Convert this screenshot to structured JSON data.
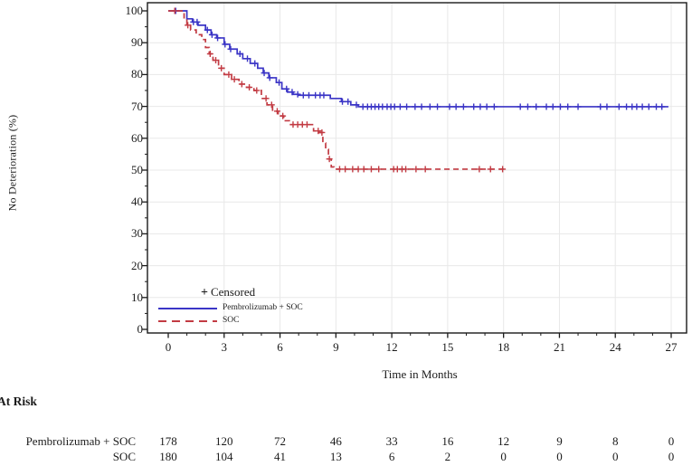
{
  "legend": {
    "censored_marker": "+",
    "censored_label": "Censored"
  },
  "at_risk": {
    "title": "At Risk",
    "rows": [
      {
        "label": "Pembrolizumab + SOC",
        "values": [
          178,
          120,
          72,
          46,
          33,
          16,
          12,
          9,
          8,
          0
        ]
      },
      {
        "label": "SOC",
        "values": [
          180,
          104,
          41,
          13,
          6,
          2,
          0,
          0,
          0,
          0
        ]
      }
    ]
  },
  "chart_data": {
    "type": "line",
    "subtype": "kaplan-meier-step",
    "title": "",
    "xlabel": "Time in Months",
    "ylabel": "No Deterioration (%)",
    "xlim": [
      0,
      27
    ],
    "ylim": [
      0,
      100
    ],
    "x_ticks": [
      0,
      3,
      6,
      9,
      12,
      15,
      18,
      21,
      24,
      27
    ],
    "x_minor_tick_step": 1,
    "y_ticks": [
      0,
      10,
      20,
      30,
      40,
      50,
      60,
      70,
      80,
      90,
      100
    ],
    "y_minor_tick_step": 5,
    "grid": true,
    "grid_color": "#e8e8e8",
    "axis_color": "#1a1a1a",
    "legend_position": "inside lower-left",
    "series": [
      {
        "name": "Pembrolizumab + SOC",
        "color": "#3b35c6",
        "dash": "solid",
        "points": [
          [
            0,
            100
          ],
          [
            0.85,
            100
          ],
          [
            1.0,
            97.5
          ],
          [
            1.3,
            96.5
          ],
          [
            1.6,
            95.5
          ],
          [
            2.0,
            94
          ],
          [
            2.3,
            92.5
          ],
          [
            2.6,
            91.5
          ],
          [
            3.0,
            89.5
          ],
          [
            3.3,
            88
          ],
          [
            3.7,
            86.5
          ],
          [
            4.0,
            85
          ],
          [
            4.4,
            83.5
          ],
          [
            4.8,
            82
          ],
          [
            5.1,
            80.5
          ],
          [
            5.4,
            79
          ],
          [
            5.8,
            77.5
          ],
          [
            6.1,
            75.5
          ],
          [
            6.4,
            74.5
          ],
          [
            6.7,
            73.8
          ],
          [
            7.0,
            73.5
          ],
          [
            8.5,
            73.5
          ],
          [
            8.7,
            72.5
          ],
          [
            9.3,
            71.5
          ],
          [
            9.8,
            70.5
          ],
          [
            10.2,
            69.9
          ],
          [
            26.85,
            69.9
          ]
        ],
        "censor_x": [
          0.4,
          1.35,
          1.55,
          2.1,
          2.35,
          2.65,
          3.05,
          3.35,
          3.85,
          4.25,
          4.65,
          5.15,
          5.45,
          5.95,
          6.35,
          6.65,
          6.95,
          7.25,
          7.55,
          7.9,
          8.15,
          8.35,
          9.35,
          9.65,
          10.1,
          10.45,
          10.7,
          10.9,
          11.1,
          11.3,
          11.5,
          11.75,
          11.95,
          12.15,
          12.45,
          12.8,
          13.25,
          13.6,
          14.05,
          14.45,
          15.1,
          15.45,
          15.85,
          16.4,
          16.75,
          17.1,
          17.5,
          18.9,
          19.3,
          19.75,
          20.3,
          20.65,
          21.05,
          21.45,
          22.0,
          23.2,
          23.55,
          24.2,
          24.6,
          24.9,
          25.15,
          25.45,
          25.8,
          26.2,
          26.5
        ]
      },
      {
        "name": "SOC",
        "color": "#c23b43",
        "dash": "dashed",
        "points": [
          [
            0,
            100
          ],
          [
            0.7,
            100
          ],
          [
            0.85,
            97.5
          ],
          [
            1.0,
            95.5
          ],
          [
            1.2,
            94
          ],
          [
            1.5,
            92.5
          ],
          [
            1.8,
            91
          ],
          [
            2.0,
            88.5
          ],
          [
            2.2,
            86.5
          ],
          [
            2.4,
            84.5
          ],
          [
            2.7,
            82
          ],
          [
            3.0,
            80
          ],
          [
            3.4,
            78.5
          ],
          [
            3.8,
            77
          ],
          [
            4.2,
            76
          ],
          [
            4.6,
            75
          ],
          [
            5.0,
            72.5
          ],
          [
            5.3,
            70.5
          ],
          [
            5.6,
            68.5
          ],
          [
            5.9,
            67
          ],
          [
            6.2,
            65.5
          ],
          [
            6.5,
            64.3
          ],
          [
            7.6,
            64.3
          ],
          [
            7.8,
            62.3
          ],
          [
            8.1,
            61.8
          ],
          [
            8.3,
            58.5
          ],
          [
            8.45,
            56.5
          ],
          [
            8.6,
            53.5
          ],
          [
            8.75,
            51
          ],
          [
            8.9,
            50.3
          ],
          [
            18.1,
            50.3
          ]
        ],
        "censor_x": [
          0.35,
          1.05,
          2.25,
          2.55,
          2.85,
          3.25,
          3.55,
          3.95,
          4.35,
          4.75,
          5.25,
          5.55,
          5.85,
          6.15,
          6.7,
          6.95,
          7.2,
          7.45,
          8.05,
          8.25,
          8.65,
          9.2,
          9.5,
          9.9,
          10.2,
          10.5,
          10.9,
          11.3,
          12.1,
          12.3,
          12.55,
          12.75,
          13.3,
          13.8,
          16.7,
          17.3,
          17.95
        ]
      }
    ],
    "at_risk_times": [
      0,
      3,
      6,
      9,
      12,
      15,
      18,
      21,
      24,
      27
    ]
  }
}
